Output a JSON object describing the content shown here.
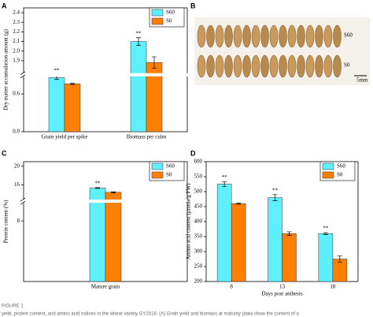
{
  "chart_data": [
    {
      "type": "bar",
      "panel": "A",
      "y_label": "Dry matter accumulation amount (g)",
      "categories": [
        "Grain yield per spike",
        "Biomass per culm"
      ],
      "series": [
        {
          "name": "S60",
          "color": "#5ff0ff",
          "values": [
            0.86,
            2.1
          ],
          "errors": [
            0.03,
            0.04
          ],
          "significance": [
            "**",
            "**"
          ]
        },
        {
          "name": "S0",
          "color": "#ff8000",
          "values": [
            0.76,
            1.88
          ],
          "errors": [
            0.01,
            0.06
          ]
        }
      ],
      "ylim": [
        0,
        2.45
      ],
      "axis_break": [
        0.88,
        1.77
      ],
      "yticks": [
        {
          "value": 0,
          "label": "0.0"
        },
        0.6,
        1.9,
        {
          "value": 2,
          "label": "2.0"
        },
        2.1,
        2.2,
        2.3,
        2.4
      ],
      "legend": "upper right"
    },
    {
      "type": "bar",
      "panel": "C",
      "y_label": "Protein content (%)",
      "categories": [
        "Mature grain"
      ],
      "series": [
        {
          "name": "S60",
          "color": "#5ff0ff",
          "values": [
            15.3
          ],
          "errors": [
            0.1
          ],
          "significance": [
            "**"
          ]
        },
        {
          "name": "S0",
          "color": "#ff8000",
          "values": [
            14.4
          ],
          "errors": [
            0.1
          ]
        }
      ],
      "ylim": [
        0,
        21
      ],
      "axis_break": [
        10.4,
        12.8
      ],
      "yticks": [
        8,
        16,
        20
      ],
      "legend": "upper right"
    },
    {
      "type": "bar",
      "panel": "D",
      "y_label": "Amino acid content (μmole/g FW)",
      "x_label": "Days post anthesis",
      "categories": [
        "8",
        "13",
        "18"
      ],
      "series": [
        {
          "name": "S60",
          "color": "#5ff0ff",
          "values": [
            525,
            480,
            360
          ],
          "errors": [
            8,
            10,
            3
          ],
          "significance": [
            "**",
            "**",
            "**"
          ]
        },
        {
          "name": "S0",
          "color": "#ff8000",
          "values": [
            460,
            360,
            275
          ],
          "errors": [
            2,
            6,
            10
          ]
        }
      ],
      "ylim": [
        200,
        600
      ],
      "yticks": [
        200,
        250,
        300,
        350,
        400,
        450,
        500,
        550,
        600
      ],
      "legend": "upper right"
    }
  ],
  "photo": {
    "panel": "B",
    "labels": [
      "S60",
      "S0"
    ],
    "scale": "5mm"
  },
  "caption": {
    "label": "FIGURE 1",
    "text": "yield, protein content, and amino acid indices in the wheat variety GY2018. (A) Grain yield and biomass at maturity (data show the content of a"
  }
}
